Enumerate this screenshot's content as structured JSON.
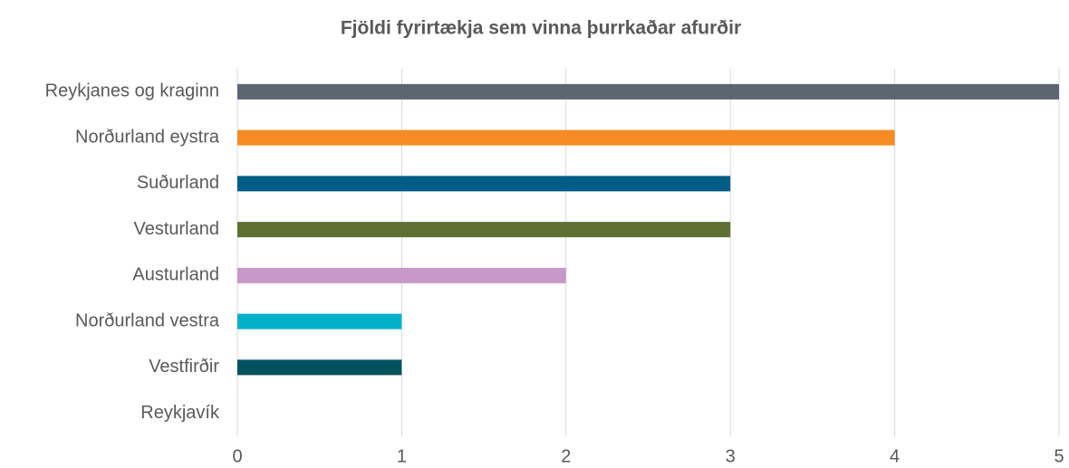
{
  "chart_data": {
    "type": "bar",
    "orientation": "horizontal",
    "title": "Fjöldi fyrirtækja sem vinna þurrkaðar afurðir",
    "categories": [
      "Reykjanes og kraginn",
      "Norðurland eystra",
      "Suðurland",
      "Vesturland",
      "Austurland",
      "Norðurland vestra",
      "Vestfirðir",
      "Reykjavík"
    ],
    "values": [
      5,
      4,
      3,
      3,
      2,
      1,
      1,
      0
    ],
    "colors": [
      "#5d6670",
      "#f58b22",
      "#005d87",
      "#5f7035",
      "#c898ca",
      "#00b1c9",
      "#00525d",
      "#888888"
    ],
    "xlim": [
      0,
      5
    ],
    "xticks": [
      0,
      1,
      2,
      3,
      4,
      5
    ],
    "grid": true
  }
}
